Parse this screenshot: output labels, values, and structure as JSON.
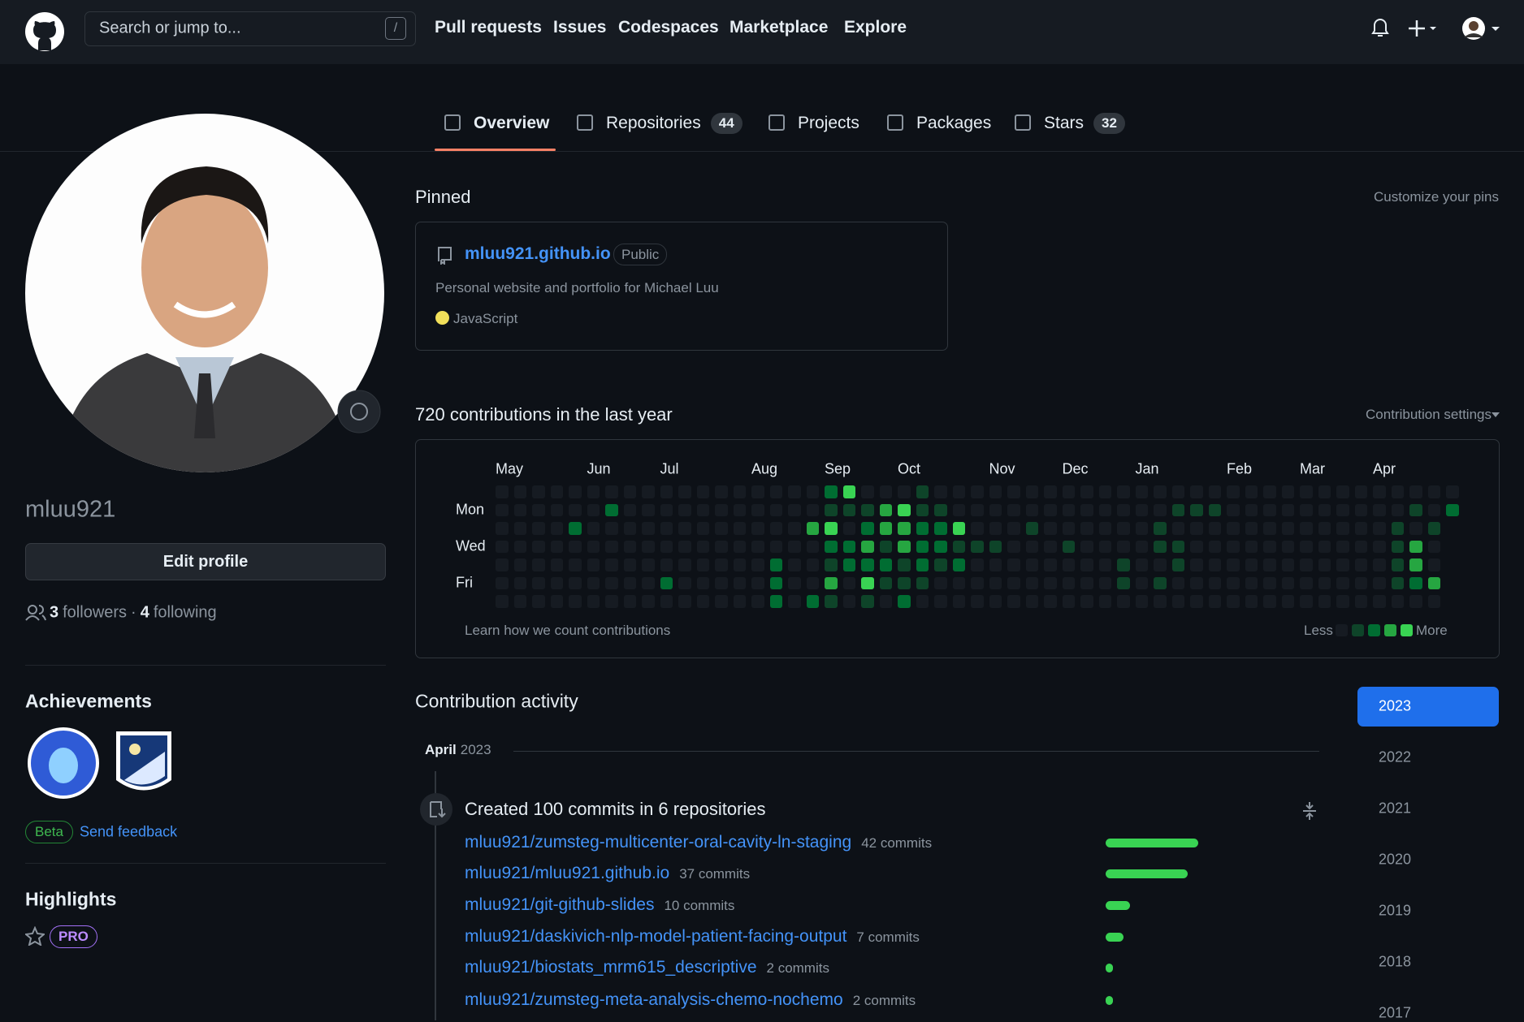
{
  "header": {
    "search_placeholder": "Search or jump to...",
    "search_key": "/",
    "nav": [
      "Pull requests",
      "Issues",
      "Codespaces",
      "Marketplace",
      "Explore"
    ]
  },
  "tabs": [
    {
      "label": "Overview"
    },
    {
      "label": "Repositories",
      "count": 44
    },
    {
      "label": "Projects"
    },
    {
      "label": "Packages"
    },
    {
      "label": "Stars",
      "count": 32
    }
  ],
  "profile": {
    "username": "mluu921",
    "edit_button": "Edit profile",
    "followers": 3,
    "followers_label": "followers",
    "separator": "·",
    "following": 4,
    "following_label": "following"
  },
  "achievements": {
    "title": "Achievements",
    "beta": "Beta",
    "feedback": "Send feedback"
  },
  "highlights": {
    "title": "Highlights",
    "badge": "PRO"
  },
  "pinned": {
    "title": "Pinned",
    "customize": "Customize your pins",
    "repo": {
      "name": "mluu921.github.io",
      "visibility": "Public",
      "description": "Personal website and portfolio for Michael Luu",
      "language": "JavaScript"
    }
  },
  "contributions": {
    "title": "720 contributions in the last year",
    "settings": "Contribution settings",
    "months": [
      "May",
      "Jun",
      "Jul",
      "Aug",
      "Sep",
      "Oct",
      "Nov",
      "Dec",
      "Jan",
      "Feb",
      "Mar",
      "Apr"
    ],
    "days": [
      "Mon",
      "Wed",
      "Fri"
    ],
    "weeks": [
      [
        0,
        0,
        0,
        0,
        0,
        0,
        0
      ],
      [
        0,
        0,
        0,
        0,
        0,
        0,
        0
      ],
      [
        0,
        0,
        0,
        0,
        0,
        0,
        0
      ],
      [
        0,
        0,
        0,
        0,
        0,
        0,
        0
      ],
      [
        0,
        0,
        2,
        0,
        0,
        0,
        0
      ],
      [
        0,
        0,
        0,
        0,
        0,
        0,
        0
      ],
      [
        0,
        2,
        0,
        0,
        0,
        0,
        0
      ],
      [
        0,
        0,
        0,
        0,
        0,
        0,
        0
      ],
      [
        0,
        0,
        0,
        0,
        0,
        0,
        0
      ],
      [
        0,
        0,
        0,
        0,
        0,
        2,
        0
      ],
      [
        0,
        0,
        0,
        0,
        0,
        0,
        0
      ],
      [
        0,
        0,
        0,
        0,
        0,
        0,
        0
      ],
      [
        0,
        0,
        0,
        0,
        0,
        0,
        0
      ],
      [
        0,
        0,
        0,
        0,
        0,
        0,
        0
      ],
      [
        0,
        0,
        0,
        0,
        0,
        0,
        0
      ],
      [
        0,
        0,
        0,
        0,
        2,
        2,
        2
      ],
      [
        0,
        0,
        0,
        0,
        0,
        0,
        0
      ],
      [
        0,
        0,
        3,
        0,
        0,
        0,
        2
      ],
      [
        2,
        1,
        4,
        2,
        1,
        3,
        1
      ],
      [
        4,
        1,
        0,
        2,
        2,
        0,
        0
      ],
      [
        0,
        1,
        2,
        3,
        2,
        4,
        1
      ],
      [
        0,
        3,
        3,
        1,
        2,
        1,
        0
      ],
      [
        0,
        4,
        3,
        3,
        1,
        1,
        2
      ],
      [
        1,
        1,
        2,
        2,
        2,
        1,
        0
      ],
      [
        0,
        1,
        2,
        2,
        1,
        0,
        0
      ],
      [
        0,
        0,
        4,
        1,
        2,
        0,
        0
      ],
      [
        0,
        0,
        0,
        1,
        0,
        0,
        0
      ],
      [
        0,
        0,
        0,
        1,
        0,
        0,
        0
      ],
      [
        0,
        0,
        0,
        0,
        0,
        0,
        0
      ],
      [
        0,
        0,
        1,
        0,
        0,
        0,
        0
      ],
      [
        0,
        0,
        0,
        0,
        0,
        0,
        0
      ],
      [
        0,
        0,
        0,
        1,
        0,
        0,
        0
      ],
      [
        0,
        0,
        0,
        0,
        0,
        0,
        0
      ],
      [
        0,
        0,
        0,
        0,
        0,
        0,
        0
      ],
      [
        0,
        0,
        0,
        0,
        1,
        1,
        0
      ],
      [
        0,
        0,
        0,
        0,
        0,
        0,
        0
      ],
      [
        0,
        0,
        1,
        1,
        0,
        1,
        0
      ],
      [
        0,
        1,
        0,
        1,
        1,
        0,
        0
      ],
      [
        0,
        1,
        0,
        0,
        0,
        0,
        0
      ],
      [
        0,
        1,
        0,
        0,
        0,
        0,
        0
      ],
      [
        0,
        0,
        0,
        0,
        0,
        0,
        0
      ],
      [
        0,
        0,
        0,
        0,
        0,
        0,
        0
      ],
      [
        0,
        0,
        0,
        0,
        0,
        0,
        0
      ],
      [
        0,
        0,
        0,
        0,
        0,
        0,
        0
      ],
      [
        0,
        0,
        0,
        0,
        0,
        0,
        0
      ],
      [
        0,
        0,
        0,
        0,
        0,
        0,
        0
      ],
      [
        0,
        0,
        0,
        0,
        0,
        0,
        0
      ],
      [
        0,
        0,
        0,
        0,
        0,
        0,
        0
      ],
      [
        0,
        0,
        0,
        0,
        0,
        0,
        0
      ],
      [
        0,
        0,
        1,
        1,
        1,
        1,
        0
      ],
      [
        0,
        1,
        0,
        3,
        3,
        2,
        0
      ],
      [
        0,
        0,
        1,
        0,
        0,
        3,
        0
      ],
      [
        0,
        2
      ]
    ],
    "learn": "Learn how we count contributions",
    "less": "Less",
    "more": "More"
  },
  "activity": {
    "title": "Contribution activity",
    "month": "April",
    "year": "2023",
    "summary": "Created 100 commits in 6 repositories",
    "repos": [
      {
        "name": "mluu921/zumsteg-multicenter-oral-cavity-ln-staging",
        "commits": 42,
        "commits_label": "42 commits"
      },
      {
        "name": "mluu921/mluu921.github.io",
        "commits": 37,
        "commits_label": "37 commits"
      },
      {
        "name": "mluu921/git-github-slides",
        "commits": 10,
        "commits_label": "10 commits"
      },
      {
        "name": "mluu921/daskivich-nlp-model-patient-facing-output",
        "commits": 7,
        "commits_label": "7 commits"
      },
      {
        "name": "mluu921/biostats_mrm615_descriptive",
        "commits": 2,
        "commits_label": "2 commits"
      },
      {
        "name": "mluu921/zumsteg-meta-analysis-chemo-nochemo",
        "commits": 2,
        "commits_label": "2 commits"
      }
    ],
    "years": [
      "2023",
      "2022",
      "2021",
      "2020",
      "2019",
      "2018",
      "2017"
    ]
  }
}
